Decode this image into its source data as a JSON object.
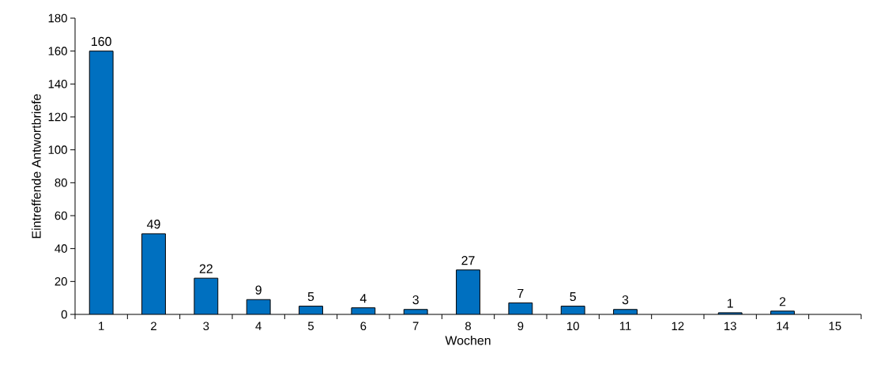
{
  "chart_data": {
    "type": "bar",
    "xlabel": "Wochen",
    "ylabel": "Eintreffende Antwortbriefe",
    "categories": [
      "1",
      "2",
      "3",
      "4",
      "5",
      "6",
      "7",
      "8",
      "9",
      "10",
      "11",
      "12",
      "13",
      "14",
      "15"
    ],
    "values": [
      160,
      49,
      22,
      9,
      5,
      4,
      3,
      27,
      7,
      5,
      3,
      null,
      1,
      2,
      null
    ],
    "value_labels": [
      "160",
      "49",
      "22",
      "9",
      "5",
      "4",
      "3",
      "27",
      "7",
      "5",
      "3",
      null,
      "1",
      "2",
      null
    ],
    "color": "#0070c0",
    "ylim": [
      0,
      180
    ],
    "yticks": [
      0,
      20,
      40,
      60,
      80,
      100,
      120,
      140,
      160,
      180
    ],
    "grid": false
  }
}
